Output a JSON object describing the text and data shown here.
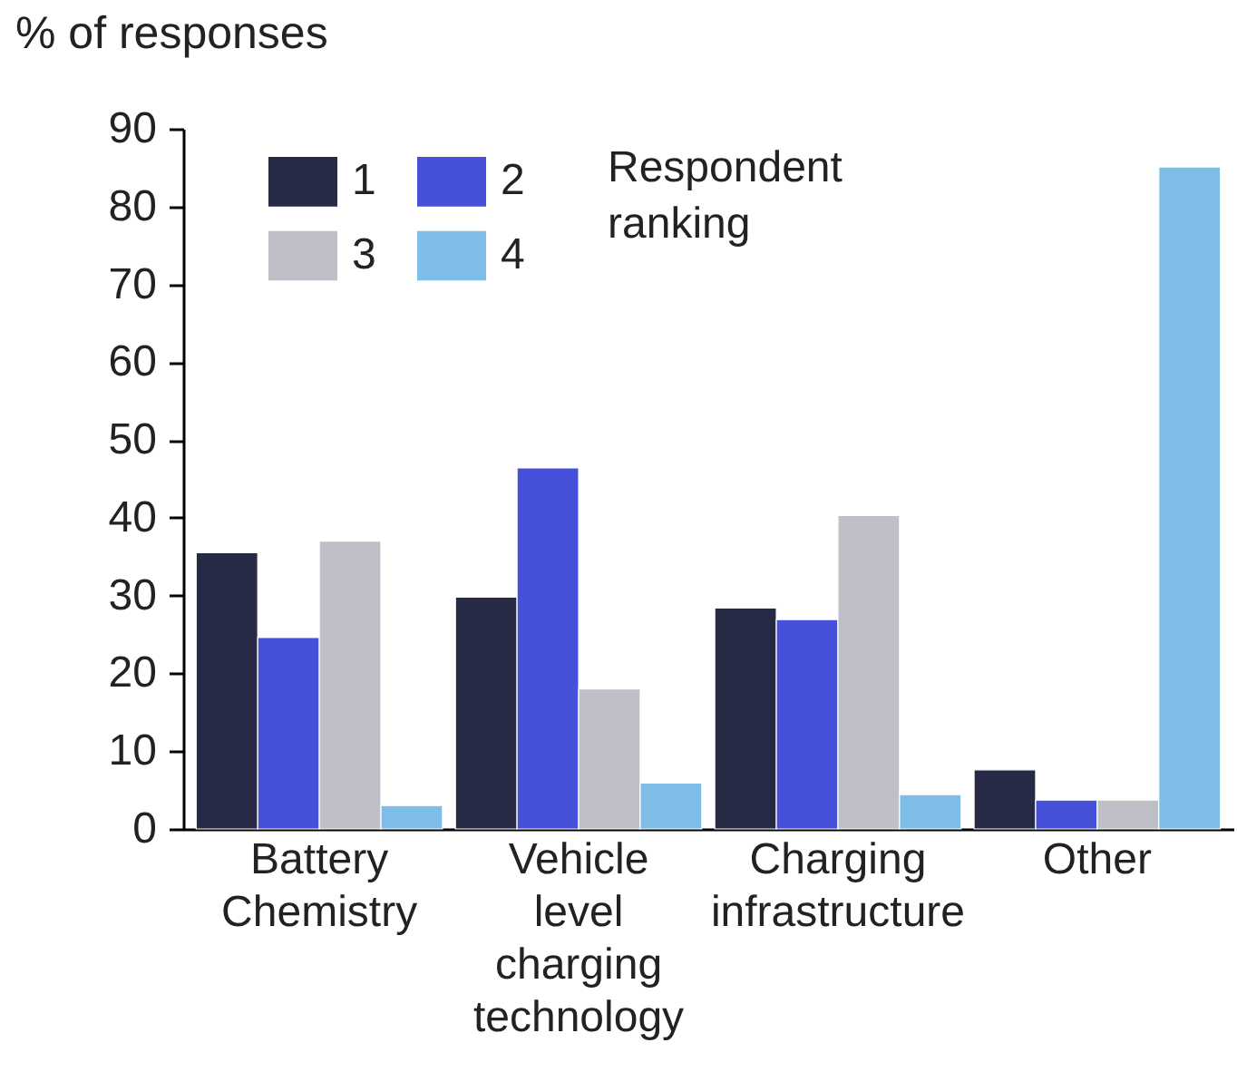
{
  "chart_data": {
    "type": "bar",
    "ylabel": "% of responses",
    "legend_title": "Respondent ranking",
    "categories": [
      "Battery Chemistry",
      "Vehicle level charging technology",
      "Charging infrastructure",
      "Other"
    ],
    "series": [
      {
        "name": "1",
        "color": "#272a45",
        "values": [
          35.5,
          29.8,
          28.4,
          7.6
        ]
      },
      {
        "name": "2",
        "color": "#4650d8",
        "values": [
          24.6,
          46.4,
          26.9,
          3.7
        ]
      },
      {
        "name": "3",
        "color": "#bfbfc8",
        "values": [
          37.0,
          18.0,
          40.3,
          3.7
        ]
      },
      {
        "name": "4",
        "color": "#7dbde8",
        "values": [
          3.0,
          5.9,
          4.4,
          85.1
        ]
      }
    ],
    "ylim": [
      0,
      90
    ],
    "yticks": [
      0,
      10,
      20,
      30,
      40,
      50,
      60,
      70,
      80,
      90
    ],
    "grid": false,
    "legend": "top left"
  }
}
